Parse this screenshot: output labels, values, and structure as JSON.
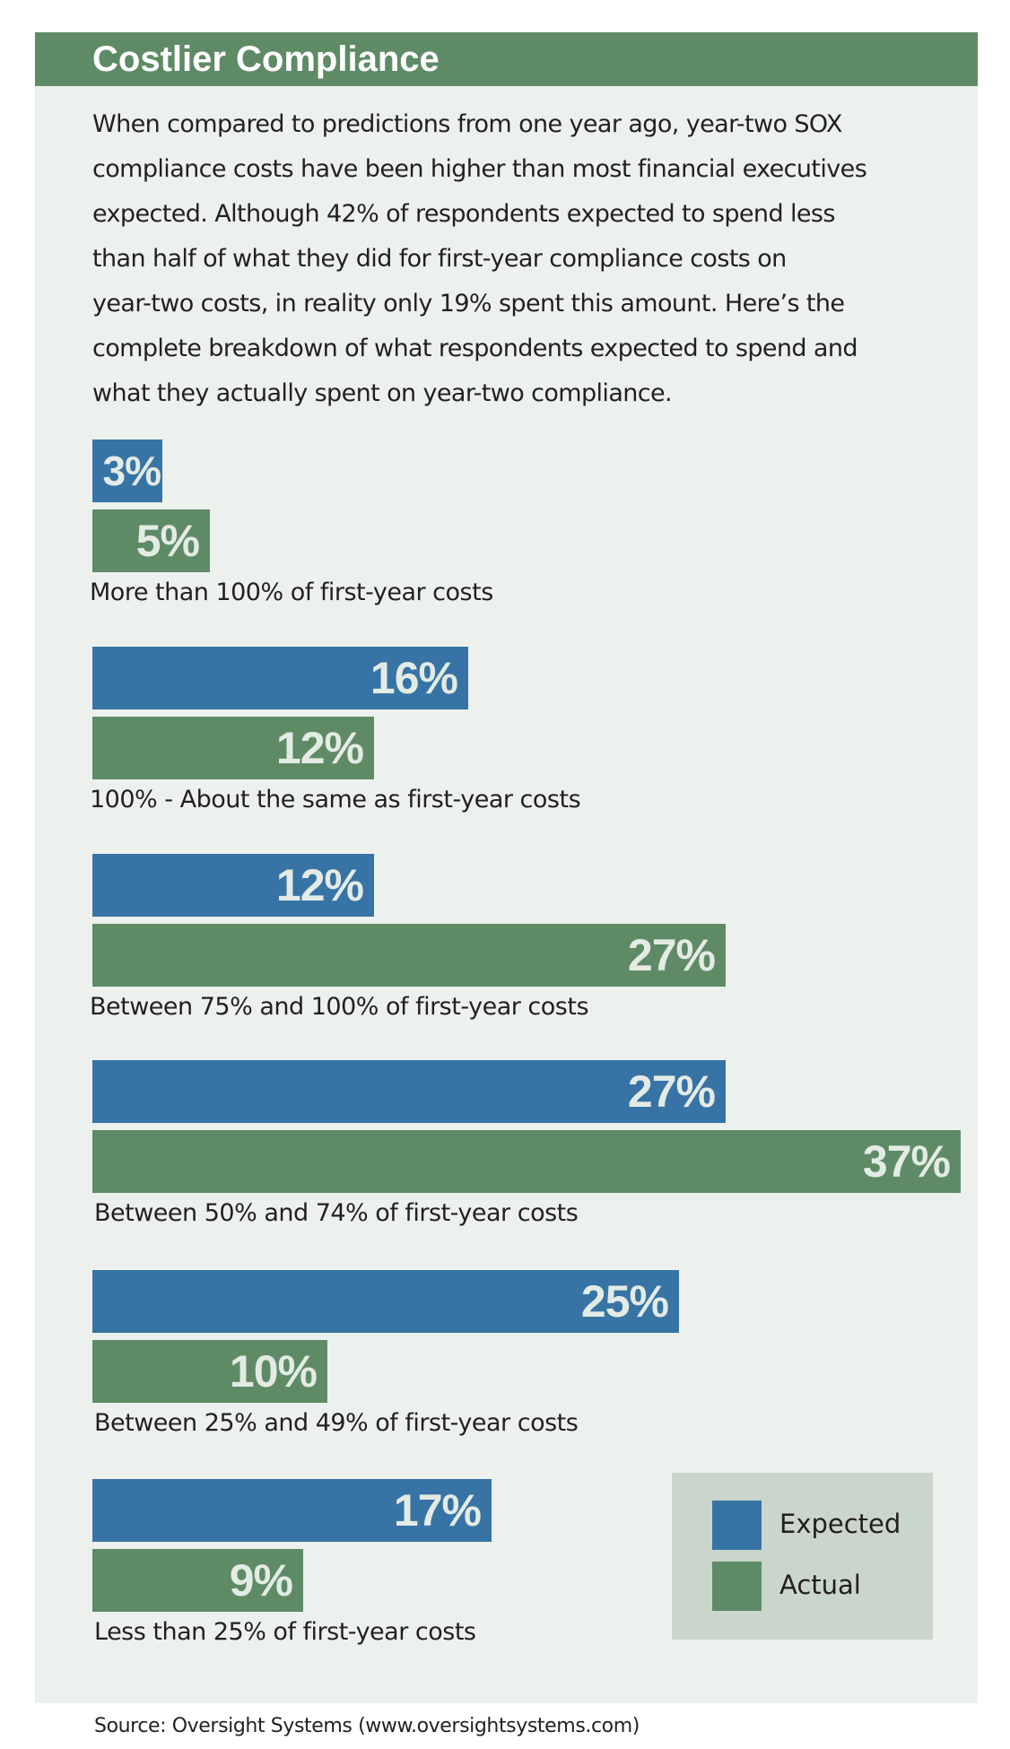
{
  "header": {
    "title": "Costlier Compliance"
  },
  "intro": {
    "lines": [
      "When compared to predictions from one year ago, year-two SOX",
      "compliance costs have been higher than most financial executives",
      "expected. Although 42% of respondents expected to spend less",
      "than half of what they did for first-year compliance costs on",
      "year-two costs, in reality only 19% spent this amount. Here’s the",
      "complete breakdown of what respondents expected to spend and",
      "what they actually spent on year-two compliance."
    ]
  },
  "colors": {
    "expected": "#3774a5",
    "actual": "#5e8b66",
    "header": "#5e8b66",
    "panel": "#edf1ee",
    "legend_bg": "#cad6cb"
  },
  "chart_data": {
    "type": "bar",
    "orientation": "horizontal",
    "title": "Costlier Compliance",
    "xlabel": "",
    "ylabel": "",
    "xlim": [
      0,
      37
    ],
    "grid": false,
    "legend_position": "bottom-right",
    "unit": "%",
    "categories": [
      "More than 100% of first-year costs",
      "100% - About the same as first-year costs",
      "Between 75% and 100% of first-year costs",
      "Between 50% and 74% of first-year costs",
      "Between 25% and 49% of first-year costs",
      "Less than 25% of first-year costs"
    ],
    "series": [
      {
        "name": "Expected",
        "color": "#3774a5",
        "values": [
          3,
          16,
          12,
          27,
          25,
          17
        ]
      },
      {
        "name": "Actual",
        "color": "#5e8b66",
        "values": [
          5,
          12,
          27,
          37,
          10,
          9
        ]
      }
    ],
    "legend": [
      "Expected",
      "Actual"
    ]
  },
  "source": "Source: Oversight Systems (www.oversightsystems.com)"
}
